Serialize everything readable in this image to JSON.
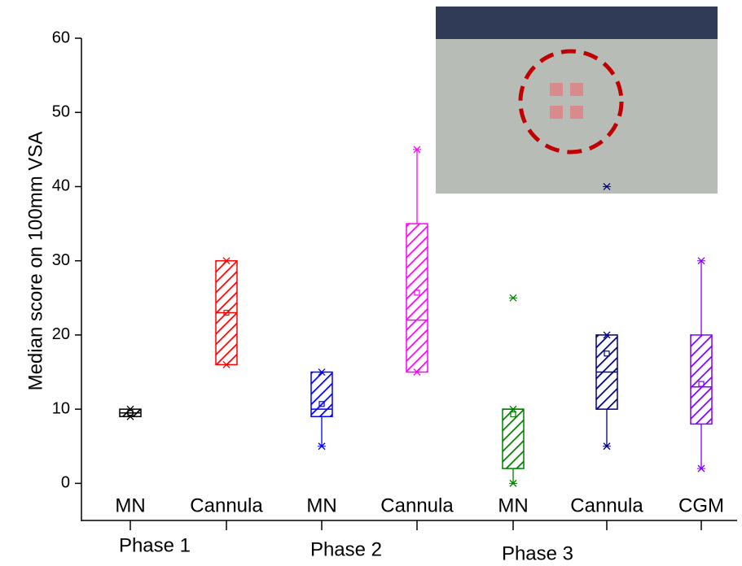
{
  "chart_data": {
    "type": "box",
    "ylabel": "Median score on 100mm VSA",
    "categories": [
      "MN",
      "Cannula",
      "MN",
      "Cannula",
      "MN",
      "Cannula",
      "CGM"
    ],
    "group_labels": [
      "Phase 1",
      "Phase 2",
      "Phase 3"
    ],
    "colors": [
      "#000000",
      "#ff0000",
      "#0000ff",
      "#ff00ff",
      "#008000",
      "#000080",
      "#8000ff"
    ],
    "min": [
      9,
      16,
      5,
      15,
      0,
      5,
      2
    ],
    "q1": [
      9,
      16,
      9,
      15,
      2,
      10,
      8
    ],
    "median": [
      9.5,
      23,
      10,
      22,
      10,
      15,
      13
    ],
    "q3": [
      10,
      30,
      15,
      35,
      10,
      20,
      20
    ],
    "max": [
      10,
      30,
      15,
      45,
      10,
      20,
      30
    ],
    "mean": [
      9.5,
      23,
      10.7,
      25.7,
      9.3,
      17.5,
      13.4
    ],
    "outliers": [
      [],
      [],
      [],
      [],
      [
        25
      ],
      [
        40
      ],
      []
    ],
    "ylim": [
      -5,
      60
    ],
    "yticks": [
      0,
      10,
      20,
      30,
      40,
      50,
      60
    ]
  }
}
